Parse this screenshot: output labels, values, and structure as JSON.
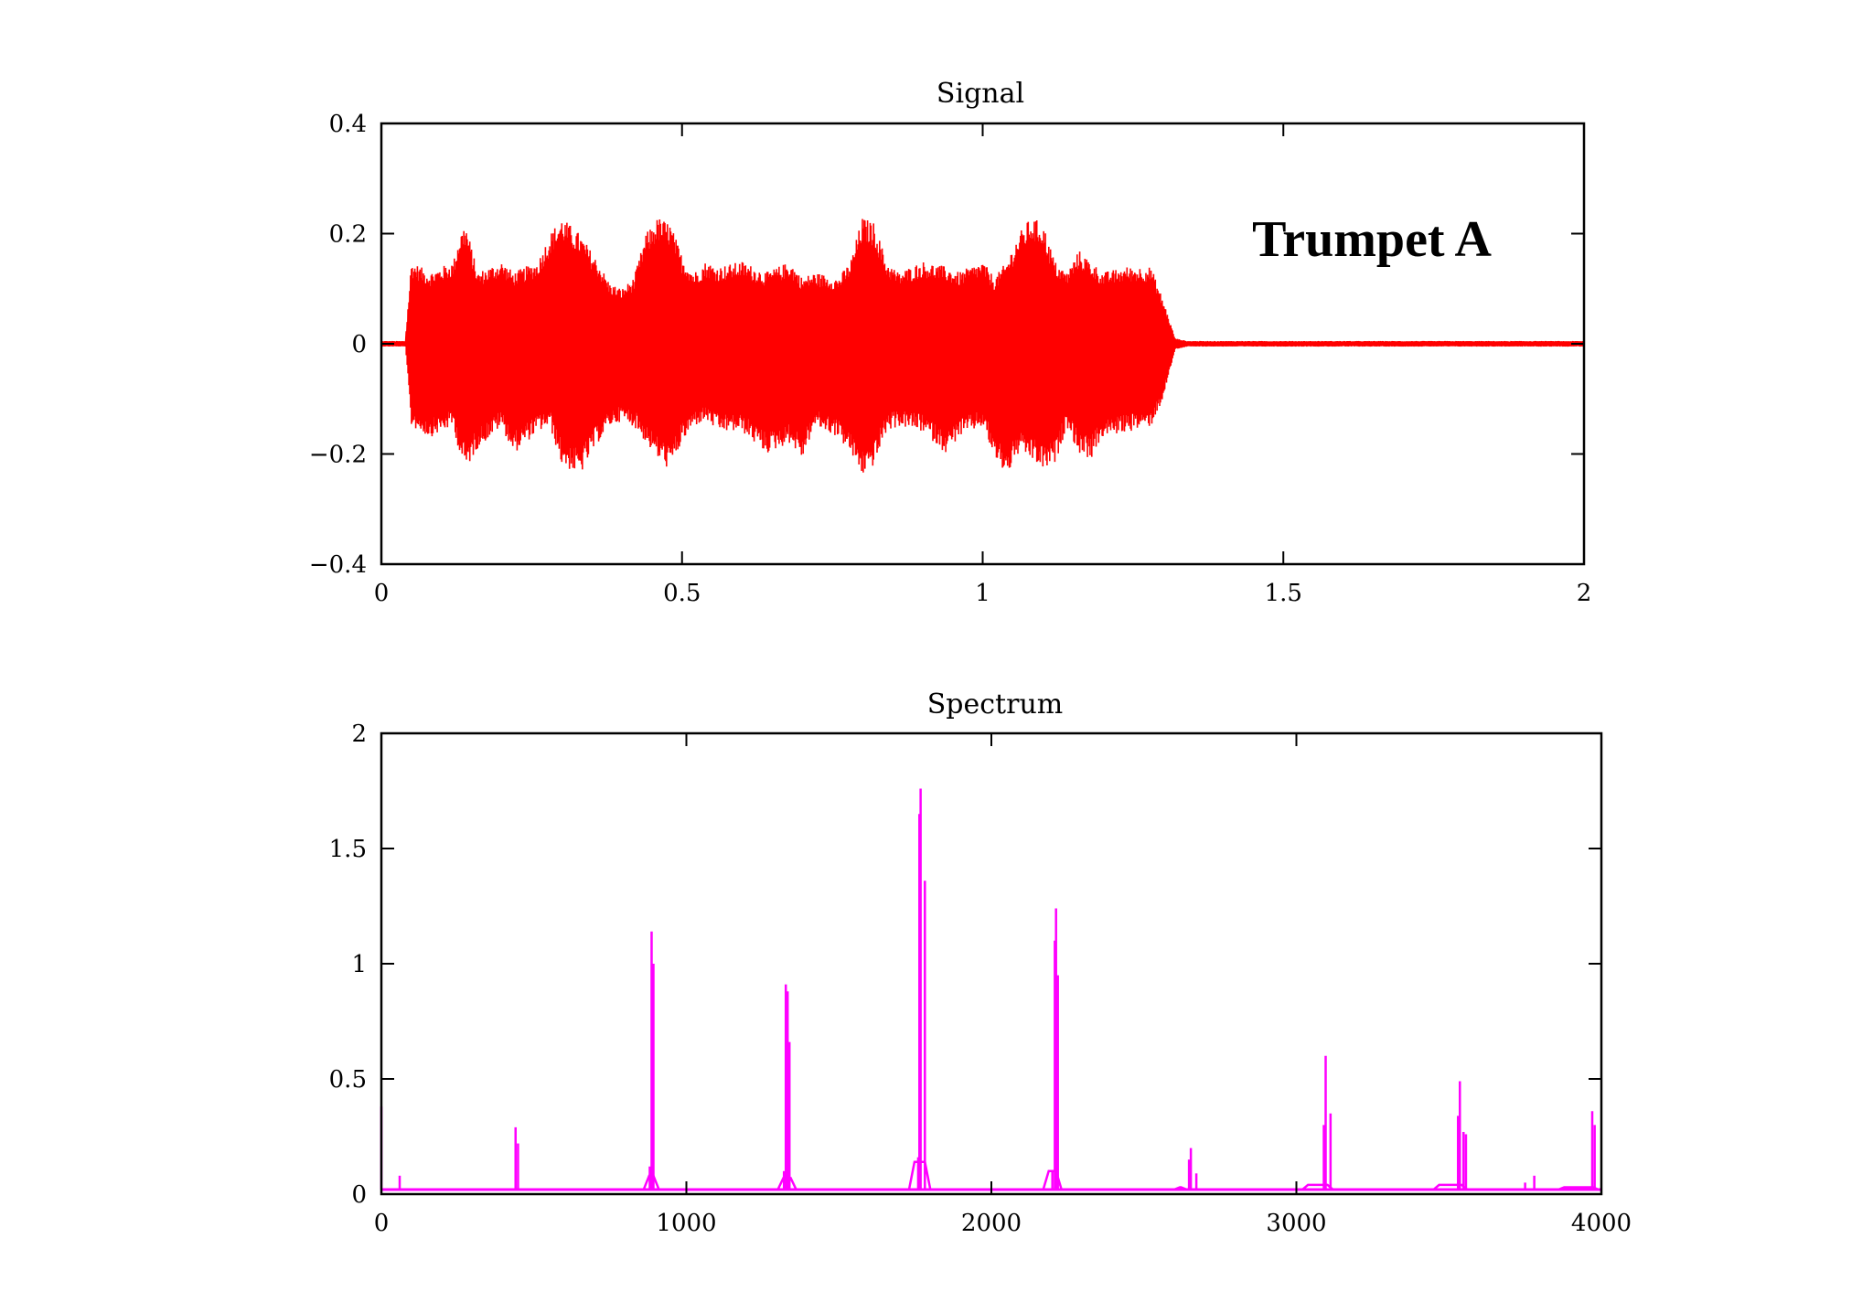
{
  "chart_data": [
    {
      "type": "line",
      "title": "Signal",
      "annotation": "Trumpet A",
      "xlim": [
        0,
        2
      ],
      "ylim": [
        -0.4,
        0.4
      ],
      "x_ticks": [
        0,
        0.5,
        1,
        1.5,
        2
      ],
      "x_tick_labels": [
        "0",
        "0.5",
        "1",
        "1.5",
        "2"
      ],
      "y_ticks": [
        0.4,
        0.2,
        0,
        -0.2,
        -0.4
      ],
      "y_tick_labels": [
        "0.4",
        "0.2",
        "0",
        "−0.2",
        "−0.4"
      ],
      "grid": false,
      "color": "#ff0000",
      "series": [
        {
          "envelope": {
            "t": [
              0,
              0.04,
              0.05,
              0.08,
              0.12,
              0.13,
              0.14,
              0.16,
              0.2,
              0.22,
              0.26,
              0.28,
              0.3,
              0.33,
              0.36,
              0.38,
              0.4,
              0.42,
              0.44,
              0.46,
              0.48,
              0.5,
              0.52,
              0.54,
              0.56,
              0.6,
              0.64,
              0.68,
              0.7,
              0.72,
              0.76,
              0.78,
              0.8,
              0.82,
              0.84,
              0.86,
              0.9,
              0.94,
              0.96,
              1.0,
              1.02,
              1.04,
              1.06,
              1.08,
              1.1,
              1.12,
              1.14,
              1.16,
              1.18,
              1.2,
              1.24,
              1.28,
              1.3,
              1.32,
              1.34,
              2.0
            ],
            "upper": [
              0.005,
              0.005,
              0.15,
              0.13,
              0.15,
              0.2,
              0.22,
              0.13,
              0.15,
              0.13,
              0.15,
              0.2,
              0.23,
              0.2,
              0.15,
              0.11,
              0.1,
              0.12,
              0.2,
              0.23,
              0.22,
              0.16,
              0.13,
              0.15,
              0.14,
              0.15,
              0.13,
              0.15,
              0.12,
              0.13,
              0.12,
              0.15,
              0.23,
              0.22,
              0.15,
              0.13,
              0.15,
              0.14,
              0.13,
              0.15,
              0.12,
              0.15,
              0.2,
              0.23,
              0.22,
              0.15,
              0.13,
              0.17,
              0.15,
              0.13,
              0.14,
              0.14,
              0.08,
              0.01,
              0.005,
              0.005
            ],
            "lower": [
              -0.005,
              -0.005,
              -0.15,
              -0.17,
              -0.15,
              -0.2,
              -0.23,
              -0.19,
              -0.15,
              -0.2,
              -0.16,
              -0.15,
              -0.22,
              -0.24,
              -0.18,
              -0.15,
              -0.14,
              -0.15,
              -0.18,
              -0.21,
              -0.23,
              -0.18,
              -0.15,
              -0.14,
              -0.16,
              -0.16,
              -0.2,
              -0.18,
              -0.21,
              -0.15,
              -0.17,
              -0.2,
              -0.24,
              -0.22,
              -0.16,
              -0.15,
              -0.16,
              -0.2,
              -0.17,
              -0.15,
              -0.21,
              -0.24,
              -0.2,
              -0.21,
              -0.23,
              -0.22,
              -0.15,
              -0.2,
              -0.21,
              -0.17,
              -0.16,
              -0.15,
              -0.1,
              -0.01,
              -0.005,
              -0.005
            ]
          }
        }
      ]
    },
    {
      "type": "line",
      "title": "Spectrum",
      "xlim": [
        0,
        4000
      ],
      "ylim": [
        0,
        2
      ],
      "x_ticks": [
        0,
        1000,
        2000,
        3000,
        4000
      ],
      "x_tick_labels": [
        "0",
        "1000",
        "2000",
        "3000",
        "4000"
      ],
      "y_ticks": [
        2,
        1.5,
        1,
        0.5,
        0
      ],
      "y_tick_labels": [
        "2",
        "1.5",
        "1",
        "0.5",
        "0"
      ],
      "grid": false,
      "color": "#ff00ff",
      "baseline": 0.02,
      "peaks": [
        {
          "x": 0,
          "y": 0.38
        },
        {
          "x": 60,
          "y": 0.08
        },
        {
          "x": 440,
          "y": 0.29
        },
        {
          "x": 448,
          "y": 0.22
        },
        {
          "x": 880,
          "y": 0.12
        },
        {
          "x": 886,
          "y": 1.14
        },
        {
          "x": 892,
          "y": 1.0
        },
        {
          "x": 1320,
          "y": 0.1
        },
        {
          "x": 1326,
          "y": 0.91
        },
        {
          "x": 1332,
          "y": 0.88
        },
        {
          "x": 1338,
          "y": 0.66
        },
        {
          "x": 1760,
          "y": 0.16
        },
        {
          "x": 1764,
          "y": 1.65
        },
        {
          "x": 1768,
          "y": 1.76
        },
        {
          "x": 1782,
          "y": 1.36
        },
        {
          "x": 2200,
          "y": 0.1
        },
        {
          "x": 2208,
          "y": 1.1
        },
        {
          "x": 2212,
          "y": 1.24
        },
        {
          "x": 2218,
          "y": 0.95
        },
        {
          "x": 2648,
          "y": 0.15
        },
        {
          "x": 2654,
          "y": 0.2
        },
        {
          "x": 2672,
          "y": 0.09
        },
        {
          "x": 3090,
          "y": 0.3
        },
        {
          "x": 3096,
          "y": 0.6
        },
        {
          "x": 3112,
          "y": 0.35
        },
        {
          "x": 3530,
          "y": 0.34
        },
        {
          "x": 3536,
          "y": 0.49
        },
        {
          "x": 3548,
          "y": 0.27
        },
        {
          "x": 3556,
          "y": 0.26
        },
        {
          "x": 3750,
          "y": 0.05
        },
        {
          "x": 3780,
          "y": 0.08
        },
        {
          "x": 3970,
          "y": 0.36
        },
        {
          "x": 3978,
          "y": 0.3
        }
      ],
      "humps": [
        {
          "x0": 860,
          "x1": 910,
          "y": 0.08
        },
        {
          "x0": 1300,
          "x1": 1360,
          "y": 0.07
        },
        {
          "x0": 1730,
          "x1": 1800,
          "y": 0.14
        },
        {
          "x0": 2170,
          "x1": 2230,
          "y": 0.1
        },
        {
          "x0": 2600,
          "x1": 2640,
          "y": 0.03
        },
        {
          "x0": 3020,
          "x1": 3120,
          "y": 0.04
        },
        {
          "x0": 3450,
          "x1": 3560,
          "y": 0.04
        },
        {
          "x0": 3860,
          "x1": 3990,
          "y": 0.03
        }
      ]
    }
  ]
}
